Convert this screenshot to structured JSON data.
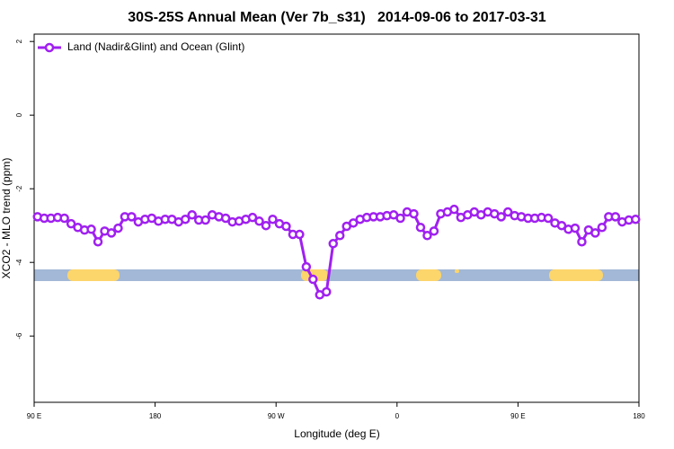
{
  "chart_data": {
    "type": "line",
    "title": "30S-25S Annual Mean (Ver 7b_s31)   2014-09-06 to 2017-03-31",
    "x_label": "Longitude (deg E)",
    "y_label": "XCO2 - MLO trend (ppm)",
    "xlim": [
      90,
      540
    ],
    "xticks": [
      {
        "value": 90,
        "label": "90 E"
      },
      {
        "value": 180,
        "label": "180"
      },
      {
        "value": 270,
        "label": "90 W"
      },
      {
        "value": 360,
        "label": "0"
      },
      {
        "value": 450,
        "label": "90 E"
      },
      {
        "value": 540,
        "label": "180"
      }
    ],
    "ylim": [
      -7.8,
      2.2
    ],
    "yticks": [
      2,
      0,
      -2,
      -4,
      -6
    ],
    "legend": "top-left",
    "x": [
      92.5,
      97.5,
      102.5,
      107.5,
      112.5,
      117.5,
      122.5,
      127.5,
      132.5,
      137.5,
      142.5,
      147.5,
      152.5,
      157.5,
      162.5,
      167.5,
      172.5,
      177.5,
      182.5,
      187.5,
      192.5,
      197.5,
      202.5,
      207.5,
      212.5,
      217.5,
      222.5,
      227.5,
      232.5,
      237.5,
      242.5,
      247.5,
      252.5,
      257.5,
      262.5,
      267.5,
      272.5,
      277.5,
      282.5,
      287.5,
      292.5,
      297.5,
      302.5,
      307.5,
      312.5,
      317.5,
      322.5,
      327.5,
      332.5,
      337.5,
      342.5,
      347.5,
      352.5,
      357.5,
      362.5,
      367.5,
      372.5,
      377.5,
      382.5,
      387.5,
      392.5,
      397.5,
      402.5,
      407.5,
      412.5,
      417.5,
      422.5,
      427.5,
      432.5,
      437.5,
      442.5,
      447.5,
      452.5,
      457.5,
      462.5,
      467.5,
      472.5,
      477.5,
      482.5,
      487.5,
      492.5,
      497.5,
      502.5,
      507.5,
      512.5,
      517.5,
      522.5,
      527.5,
      532.5,
      537.5
    ],
    "series": [
      {
        "name": "Land (Nadir&Glint) and Ocean (Glint)",
        "color": "#a020f0",
        "values": [
          -2.76,
          -2.8,
          -2.8,
          -2.78,
          -2.8,
          -2.95,
          -3.05,
          -3.12,
          -3.1,
          -3.44,
          -3.15,
          -3.2,
          -3.07,
          -2.76,
          -2.76,
          -2.9,
          -2.83,
          -2.8,
          -2.88,
          -2.83,
          -2.83,
          -2.9,
          -2.83,
          -2.71,
          -2.85,
          -2.85,
          -2.71,
          -2.76,
          -2.8,
          -2.9,
          -2.88,
          -2.83,
          -2.78,
          -2.88,
          -3.0,
          -2.83,
          -2.95,
          -3.02,
          -3.24,
          -3.24,
          -4.12,
          -4.46,
          -4.88,
          -4.8,
          -3.49,
          -3.27,
          -3.02,
          -2.93,
          -2.83,
          -2.78,
          -2.76,
          -2.76,
          -2.73,
          -2.71,
          -2.8,
          -2.63,
          -2.68,
          -3.05,
          -3.27,
          -3.15,
          -2.68,
          -2.63,
          -2.56,
          -2.78,
          -2.71,
          -2.63,
          -2.71,
          -2.63,
          -2.68,
          -2.76,
          -2.63,
          -2.73,
          -2.76,
          -2.8,
          -2.8,
          -2.78,
          -2.8,
          -2.93,
          -3.0,
          -3.1,
          -3.07,
          -3.44,
          -3.12,
          -3.2,
          -3.05,
          -2.76,
          -2.76,
          -2.9,
          -2.85,
          -2.83
        ]
      }
    ]
  }
}
